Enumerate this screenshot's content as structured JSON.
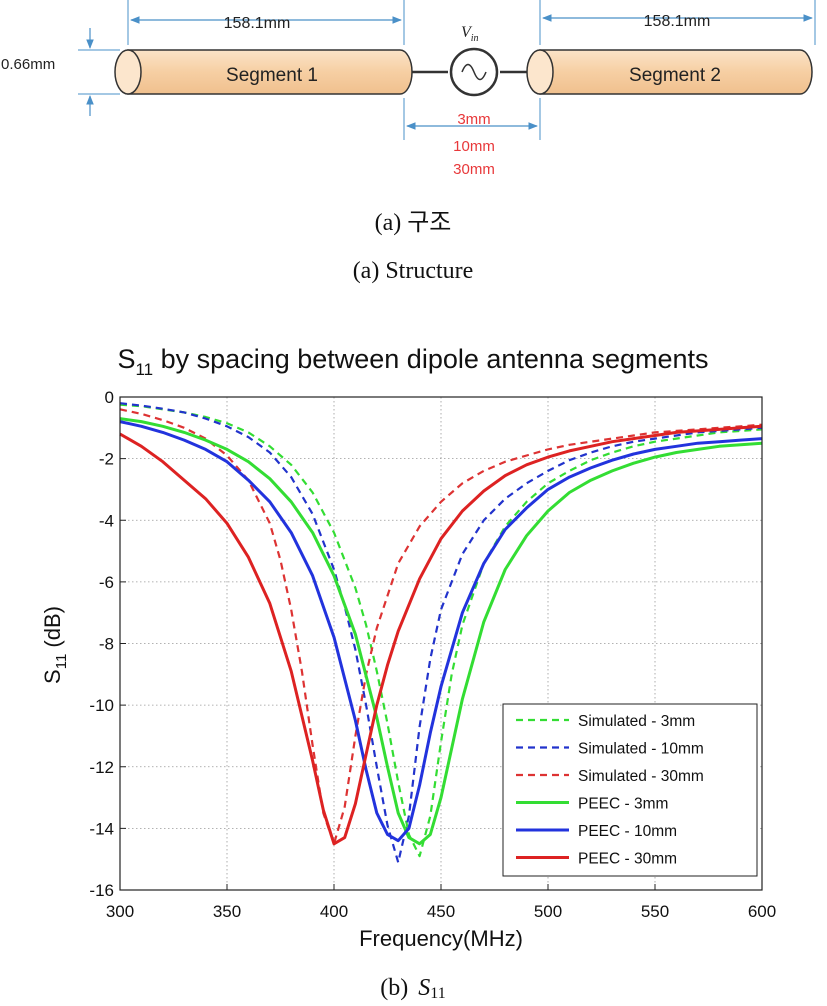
{
  "structure": {
    "segment1_label": "Segment 1",
    "segment2_label": "Segment 2",
    "length1": "158.1mm",
    "length2": "158.1mm",
    "diameter": "0.66mm",
    "source_label": "V",
    "source_subscript": "in",
    "spacings": [
      "3mm",
      "10mm",
      "30mm"
    ],
    "segment_color": "#f9d8b5",
    "dimension_color": "#4a90c8",
    "spacing_color": "#e8383a"
  },
  "caption_a_korean": "(a)  구조",
  "caption_a_english": "(a)  Structure",
  "caption_b_prefix": "(b)",
  "caption_b_symbol": "S",
  "caption_b_subscript": "11",
  "chart_data": {
    "type": "line",
    "title": {
      "prefix": "S",
      "subscript": "11",
      "text": " by spacing between dipole antenna segments"
    },
    "xlabel": "Frequency(MHz)",
    "ylabel": {
      "prefix": "S",
      "subscript": "11",
      "text": " (dB)"
    },
    "xlim": [
      300,
      600
    ],
    "ylim": [
      -16,
      0
    ],
    "xticks": [
      300,
      350,
      400,
      450,
      500,
      550,
      600
    ],
    "yticks": [
      0,
      -2,
      -4,
      -6,
      -8,
      -10,
      -12,
      -14,
      -16
    ],
    "grid": "on, dotted",
    "legend_position": "lower-right",
    "series": [
      {
        "name": "Simulated - 3mm",
        "color": "#33dd33",
        "dash": true,
        "x": [
          300,
          310,
          320,
          330,
          340,
          350,
          360,
          370,
          380,
          390,
          400,
          410,
          415,
          420,
          425,
          430,
          435,
          440,
          445,
          450,
          455,
          460,
          470,
          480,
          490,
          500,
          510,
          520,
          530,
          540,
          550,
          560,
          570,
          580,
          590,
          600
        ],
        "y": [
          -0.25,
          -0.3,
          -0.4,
          -0.5,
          -0.65,
          -0.85,
          -1.15,
          -1.6,
          -2.2,
          -3.1,
          -4.4,
          -6.2,
          -7.4,
          -8.9,
          -10.6,
          -12.5,
          -14.2,
          -14.9,
          -13.6,
          -11.2,
          -9.0,
          -7.4,
          -5.4,
          -4.2,
          -3.4,
          -2.8,
          -2.4,
          -2.05,
          -1.8,
          -1.6,
          -1.45,
          -1.35,
          -1.25,
          -1.15,
          -1.1,
          -1.05
        ]
      },
      {
        "name": "Simulated - 10mm",
        "color": "#2233cc",
        "dash": true,
        "x": [
          300,
          310,
          320,
          330,
          340,
          350,
          360,
          370,
          380,
          390,
          400,
          405,
          410,
          415,
          420,
          425,
          430,
          435,
          440,
          445,
          450,
          460,
          470,
          480,
          490,
          500,
          510,
          520,
          530,
          540,
          550,
          560,
          570,
          580,
          590,
          600
        ],
        "y": [
          -0.2,
          -0.28,
          -0.38,
          -0.5,
          -0.7,
          -0.95,
          -1.3,
          -1.8,
          -2.6,
          -3.8,
          -5.6,
          -6.8,
          -8.2,
          -10.0,
          -12.0,
          -13.9,
          -15.1,
          -13.6,
          -10.7,
          -8.5,
          -6.9,
          -5.1,
          -4.0,
          -3.3,
          -2.8,
          -2.4,
          -2.05,
          -1.8,
          -1.6,
          -1.45,
          -1.35,
          -1.25,
          -1.15,
          -1.1,
          -1.05,
          -1.0
        ]
      },
      {
        "name": "Simulated - 30mm",
        "color": "#dd3333",
        "dash": true,
        "x": [
          300,
          310,
          320,
          330,
          340,
          350,
          360,
          370,
          375,
          380,
          385,
          390,
          395,
          400,
          405,
          410,
          415,
          420,
          430,
          440,
          450,
          460,
          470,
          480,
          490,
          500,
          510,
          520,
          530,
          540,
          550,
          560,
          570,
          580,
          590,
          600
        ],
        "y": [
          -0.4,
          -0.55,
          -0.75,
          -1.0,
          -1.35,
          -1.9,
          -2.7,
          -4.1,
          -5.3,
          -6.9,
          -8.9,
          -11.3,
          -13.5,
          -14.5,
          -13.3,
          -11.0,
          -9.0,
          -7.5,
          -5.4,
          -4.2,
          -3.4,
          -2.8,
          -2.4,
          -2.1,
          -1.9,
          -1.7,
          -1.55,
          -1.45,
          -1.35,
          -1.25,
          -1.15,
          -1.1,
          -1.05,
          -1.0,
          -0.95,
          -0.9
        ]
      },
      {
        "name": "PEEC - 3mm",
        "color": "#33dd33",
        "dash": false,
        "x": [
          300,
          310,
          320,
          330,
          340,
          350,
          360,
          370,
          380,
          390,
          400,
          410,
          420,
          425,
          430,
          435,
          440,
          445,
          450,
          455,
          460,
          470,
          480,
          490,
          500,
          510,
          520,
          530,
          540,
          550,
          560,
          570,
          580,
          590,
          600
        ],
        "y": [
          -0.7,
          -0.8,
          -0.95,
          -1.15,
          -1.4,
          -1.7,
          -2.1,
          -2.65,
          -3.4,
          -4.4,
          -5.8,
          -7.7,
          -10.4,
          -12.0,
          -13.5,
          -14.3,
          -14.5,
          -14.2,
          -13.0,
          -11.4,
          -9.8,
          -7.3,
          -5.6,
          -4.5,
          -3.7,
          -3.1,
          -2.7,
          -2.4,
          -2.15,
          -1.95,
          -1.8,
          -1.7,
          -1.6,
          -1.55,
          -1.5
        ]
      },
      {
        "name": "PEEC - 10mm",
        "color": "#2233dd",
        "dash": false,
        "x": [
          300,
          310,
          320,
          330,
          340,
          350,
          360,
          370,
          380,
          390,
          400,
          410,
          415,
          420,
          425,
          430,
          435,
          440,
          445,
          450,
          460,
          470,
          480,
          490,
          500,
          510,
          520,
          530,
          540,
          550,
          560,
          570,
          580,
          590,
          600
        ],
        "y": [
          -0.8,
          -0.95,
          -1.15,
          -1.4,
          -1.7,
          -2.1,
          -2.7,
          -3.4,
          -4.4,
          -5.8,
          -7.8,
          -10.5,
          -12.1,
          -13.5,
          -14.2,
          -14.4,
          -14.0,
          -12.6,
          -10.9,
          -9.4,
          -7.0,
          -5.4,
          -4.3,
          -3.6,
          -3.0,
          -2.6,
          -2.3,
          -2.05,
          -1.85,
          -1.7,
          -1.6,
          -1.5,
          -1.45,
          -1.4,
          -1.35
        ]
      },
      {
        "name": "PEEC - 30mm",
        "color": "#dd2222",
        "dash": false,
        "x": [
          300,
          310,
          320,
          330,
          340,
          350,
          360,
          370,
          380,
          390,
          395,
          400,
          405,
          410,
          415,
          420,
          425,
          430,
          440,
          450,
          460,
          470,
          480,
          490,
          500,
          510,
          520,
          530,
          540,
          550,
          560,
          570,
          580,
          590,
          600
        ],
        "y": [
          -1.2,
          -1.6,
          -2.1,
          -2.7,
          -3.3,
          -4.1,
          -5.2,
          -6.7,
          -8.9,
          -11.8,
          -13.4,
          -14.5,
          -14.3,
          -13.2,
          -11.6,
          -10.0,
          -8.7,
          -7.6,
          -5.9,
          -4.6,
          -3.7,
          -3.05,
          -2.55,
          -2.2,
          -1.95,
          -1.75,
          -1.6,
          -1.45,
          -1.35,
          -1.25,
          -1.15,
          -1.1,
          -1.05,
          -1.0,
          -0.95
        ]
      }
    ]
  }
}
